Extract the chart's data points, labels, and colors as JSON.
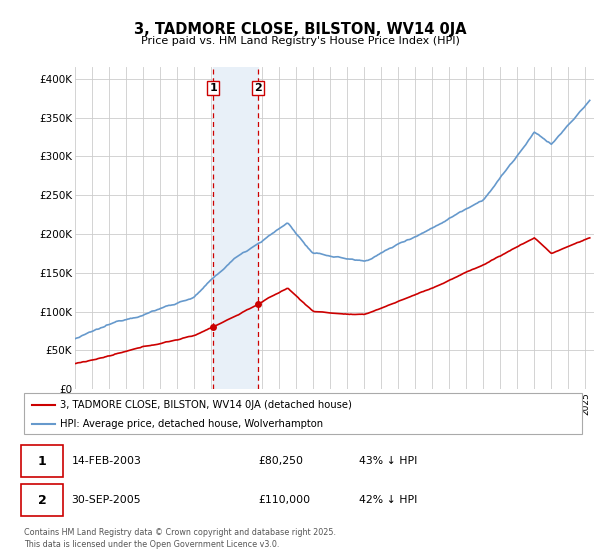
{
  "title": "3, TADMORE CLOSE, BILSTON, WV14 0JA",
  "subtitle": "Price paid vs. HM Land Registry's House Price Index (HPI)",
  "ylabel_ticks": [
    "£0",
    "£50K",
    "£100K",
    "£150K",
    "£200K",
    "£250K",
    "£300K",
    "£350K",
    "£400K"
  ],
  "ytick_vals": [
    0,
    50000,
    100000,
    150000,
    200000,
    250000,
    300000,
    350000,
    400000
  ],
  "ylim": [
    0,
    415000
  ],
  "xlim_start": 1995.0,
  "xlim_end": 2025.5,
  "transaction1_x": 2003.12,
  "transaction1_y": 80250,
  "transaction2_x": 2005.75,
  "transaction2_y": 110000,
  "legend_line1": "3, TADMORE CLOSE, BILSTON, WV14 0JA (detached house)",
  "legend_line2": "HPI: Average price, detached house, Wolverhampton",
  "table_row1": [
    "1",
    "14-FEB-2003",
    "£80,250",
    "43% ↓ HPI"
  ],
  "table_row2": [
    "2",
    "30-SEP-2005",
    "£110,000",
    "42% ↓ HPI"
  ],
  "footer": "Contains HM Land Registry data © Crown copyright and database right 2025.\nThis data is licensed under the Open Government Licence v3.0.",
  "red_color": "#cc0000",
  "blue_color": "#6699cc",
  "highlight_color": "#ddeeff",
  "vline_color": "#cc0000",
  "grid_color": "#cccccc",
  "bg_color": "#ffffff"
}
